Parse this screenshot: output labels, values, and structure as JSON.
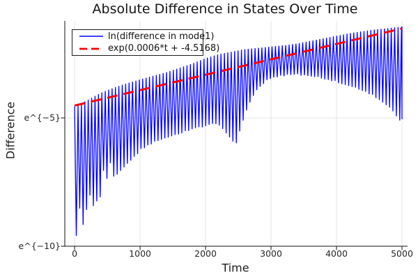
{
  "title": "Absolute Difference in States Over Time",
  "x_axis": {
    "label": "Time",
    "tick_labels": [
      "0",
      "1000",
      "2000",
      "3000",
      "4000",
      "5000"
    ]
  },
  "y_axis": {
    "label": "Difference",
    "tick_labels": [
      "e^{−5}",
      "e^{−10}"
    ]
  },
  "legend": {
    "entries": [
      {
        "label": "ln(difference in mode1)",
        "color": "#0000ff",
        "style": "solid"
      },
      {
        "label": "exp(0.0006*t + -4.5168)",
        "color": "#ff0000",
        "style": "dashed"
      }
    ]
  },
  "chart_data": {
    "type": "line",
    "title": "Absolute Difference in States Over Time",
    "xlabel": "Time",
    "ylabel": "Difference",
    "x_ticks": [
      0,
      1000,
      2000,
      3000,
      4000,
      5000
    ],
    "y_ticks": [
      {
        "value": -5,
        "label": "e^{−5}"
      },
      {
        "value": -10,
        "label": "e^{−10}"
      }
    ],
    "x_range": [
      -150,
      5085
    ],
    "y_range_ln": [
      -10,
      -1.22
    ],
    "grid": true,
    "legend_position": "top-left",
    "grid_color": "#e4e4e4",
    "series": [
      {
        "name": "ln(difference in mode1)",
        "color": "#0000ff",
        "line_style": "solid",
        "line_width": 1.3,
        "oscillation_period_t": 52,
        "upper_envelope": [
          [
            0,
            -4.55
          ],
          [
            200,
            -4.3
          ],
          [
            400,
            -4.02
          ],
          [
            600,
            -3.82
          ],
          [
            800,
            -3.65
          ],
          [
            1000,
            -3.5
          ],
          [
            1200,
            -3.36
          ],
          [
            1400,
            -3.22
          ],
          [
            1600,
            -3.05
          ],
          [
            1800,
            -2.88
          ],
          [
            2000,
            -2.67
          ],
          [
            2200,
            -2.52
          ],
          [
            2400,
            -2.42
          ],
          [
            2600,
            -2.32
          ],
          [
            2800,
            -2.27
          ],
          [
            3000,
            -2.22
          ],
          [
            3200,
            -2.17
          ],
          [
            3400,
            -2.1
          ],
          [
            3600,
            -2.0
          ],
          [
            3800,
            -1.9
          ],
          [
            4000,
            -1.8
          ],
          [
            4200,
            -1.7
          ],
          [
            4400,
            -1.62
          ],
          [
            4600,
            -1.55
          ],
          [
            4800,
            -1.5
          ],
          [
            5000,
            -1.44
          ]
        ],
        "lower_envelope": [
          [
            0,
            -9.7
          ],
          [
            150,
            -9.1
          ],
          [
            300,
            -8.5
          ],
          [
            450,
            -7.9
          ],
          [
            600,
            -7.35
          ],
          [
            750,
            -6.95
          ],
          [
            900,
            -6.55
          ],
          [
            1050,
            -6.2
          ],
          [
            1250,
            -5.92
          ],
          [
            1450,
            -5.75
          ],
          [
            1650,
            -5.6
          ],
          [
            1850,
            -5.45
          ],
          [
            2000,
            -5.33
          ],
          [
            2150,
            -5.22
          ],
          [
            2280,
            -5.5
          ],
          [
            2380,
            -5.85
          ],
          [
            2460,
            -6.08
          ],
          [
            2530,
            -5.45
          ],
          [
            2620,
            -4.75
          ],
          [
            2720,
            -4.2
          ],
          [
            2820,
            -3.82
          ],
          [
            2950,
            -3.56
          ],
          [
            3100,
            -3.42
          ],
          [
            3300,
            -3.33
          ],
          [
            3500,
            -3.36
          ],
          [
            3700,
            -3.42
          ],
          [
            3900,
            -3.55
          ],
          [
            4100,
            -3.7
          ],
          [
            4300,
            -3.85
          ],
          [
            4500,
            -4.08
          ],
          [
            4650,
            -4.3
          ],
          [
            4800,
            -4.58
          ],
          [
            4900,
            -4.88
          ],
          [
            4955,
            -5.15
          ],
          [
            5000,
            -5.05
          ]
        ],
        "early_tip_jitter": {
          "until_t": 1200,
          "amplitude_ln": 1.15
        }
      },
      {
        "name": "exp(0.0006*t + -4.5168)",
        "color": "#ff0000",
        "line_style": "dashed",
        "line_width": 3,
        "fit_slope": 0.0006,
        "fit_intercept": -4.5168,
        "t_start": 0,
        "t_end": 5000
      }
    ]
  }
}
